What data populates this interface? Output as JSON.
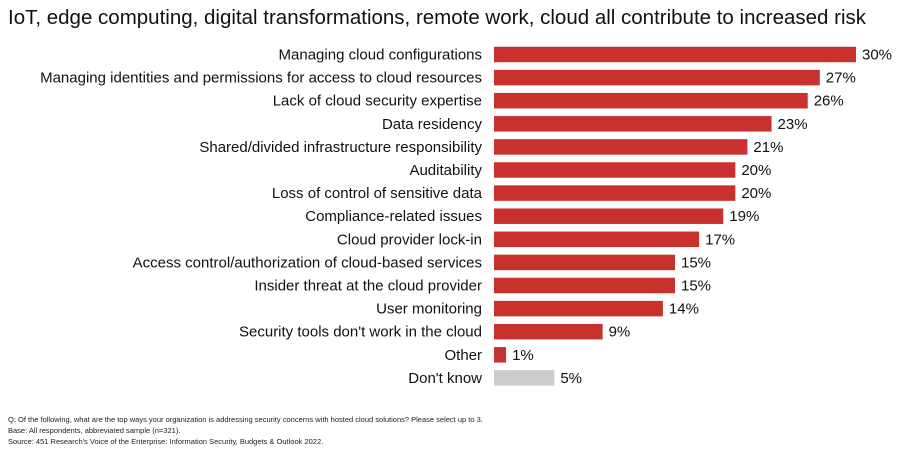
{
  "title": "IoT, edge computing, digital transformations, remote work, cloud all contribute to increased risk",
  "chart_data": {
    "type": "bar",
    "orientation": "horizontal",
    "categories": [
      "Managing cloud configurations",
      "Managing identities and permissions for access to cloud resources",
      "Lack of cloud security expertise",
      "Data residency",
      "Shared/divided infrastructure responsibility",
      "Auditability",
      "Loss of control of sensitive data",
      "Compliance-related issues",
      "Cloud provider lock-in",
      "Access control/authorization of cloud-based services",
      "Insider threat at the cloud provider",
      "User monitoring",
      "Security tools don't work in the cloud",
      "Other",
      "Don't know"
    ],
    "values": [
      30,
      27,
      26,
      23,
      21,
      20,
      20,
      19,
      17,
      15,
      15,
      14,
      9,
      1,
      5
    ],
    "value_labels": [
      "30%",
      "27%",
      "26%",
      "23%",
      "21%",
      "20%",
      "20%",
      "19%",
      "17%",
      "15%",
      "15%",
      "14%",
      "9%",
      "1%",
      "5%"
    ],
    "xlim": [
      0,
      30
    ],
    "grid": false,
    "legend": "none",
    "colors": {
      "bar": "#c8312d",
      "muted_bar": "#cccccc",
      "muted_categories": [
        "Don't know"
      ]
    }
  },
  "footnotes": {
    "question": "Q: Of the following, what are the top ways your organization is addressing security concerns with hosted cloud solutions? Please select up to 3.",
    "base": "Base: All respondents, abbreviated sample (n=321).",
    "source": "Source: 451 Research's Voice of the Enterprise: Information Security, Budgets & Outlook 2022."
  }
}
